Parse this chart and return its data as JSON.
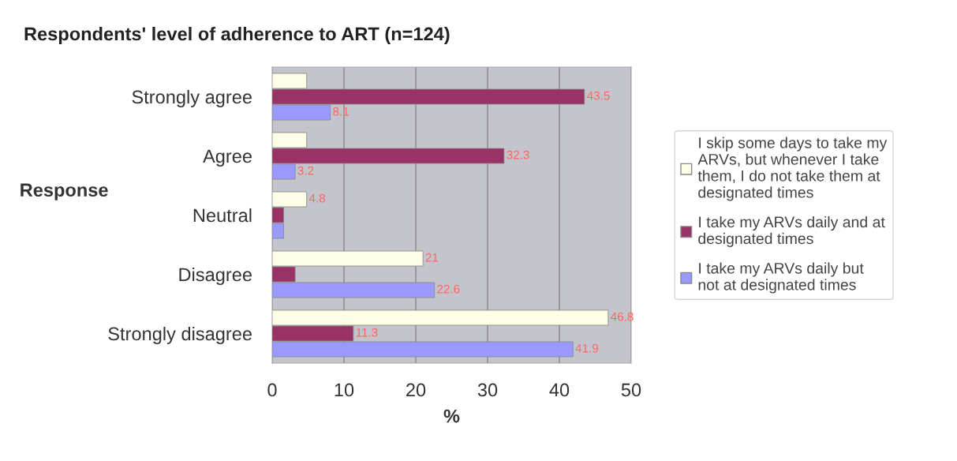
{
  "chart_data": {
    "type": "bar",
    "orientation": "horizontal",
    "title": "Respondents' level of adherence to ART (n=124)",
    "xlabel": "%",
    "ylabel": "Response",
    "categories": [
      "Strongly agree",
      "Agree",
      "Neutral",
      "Disagree",
      "Strongly disagree"
    ],
    "series": [
      {
        "name": "I skip some days to take my ARVs, but whenever I take them, I do not take them at designated times",
        "color": "#ffffe8",
        "values": [
          4.8,
          4.8,
          4.8,
          21,
          46.8
        ],
        "value_labels": [
          null,
          null,
          "4.8",
          "21",
          "46.8"
        ]
      },
      {
        "name": "I take my ARVs daily and at designated times",
        "color": "#993366",
        "values": [
          43.5,
          32.3,
          1.6,
          3.2,
          11.3
        ],
        "value_labels": [
          "43.5",
          "32.3",
          null,
          null,
          "11.3"
        ]
      },
      {
        "name": "I take my ARVs daily but not at designated times",
        "color": "#9999ff",
        "values": [
          8.1,
          3.2,
          1.6,
          22.6,
          41.9
        ],
        "value_labels": [
          "8.1",
          "3.2",
          null,
          "22.6",
          "41.9"
        ]
      }
    ],
    "xlim": [
      0,
      50
    ],
    "xticks": [
      0,
      10,
      20,
      30,
      40,
      50
    ],
    "grid": "x",
    "legend": "right"
  }
}
